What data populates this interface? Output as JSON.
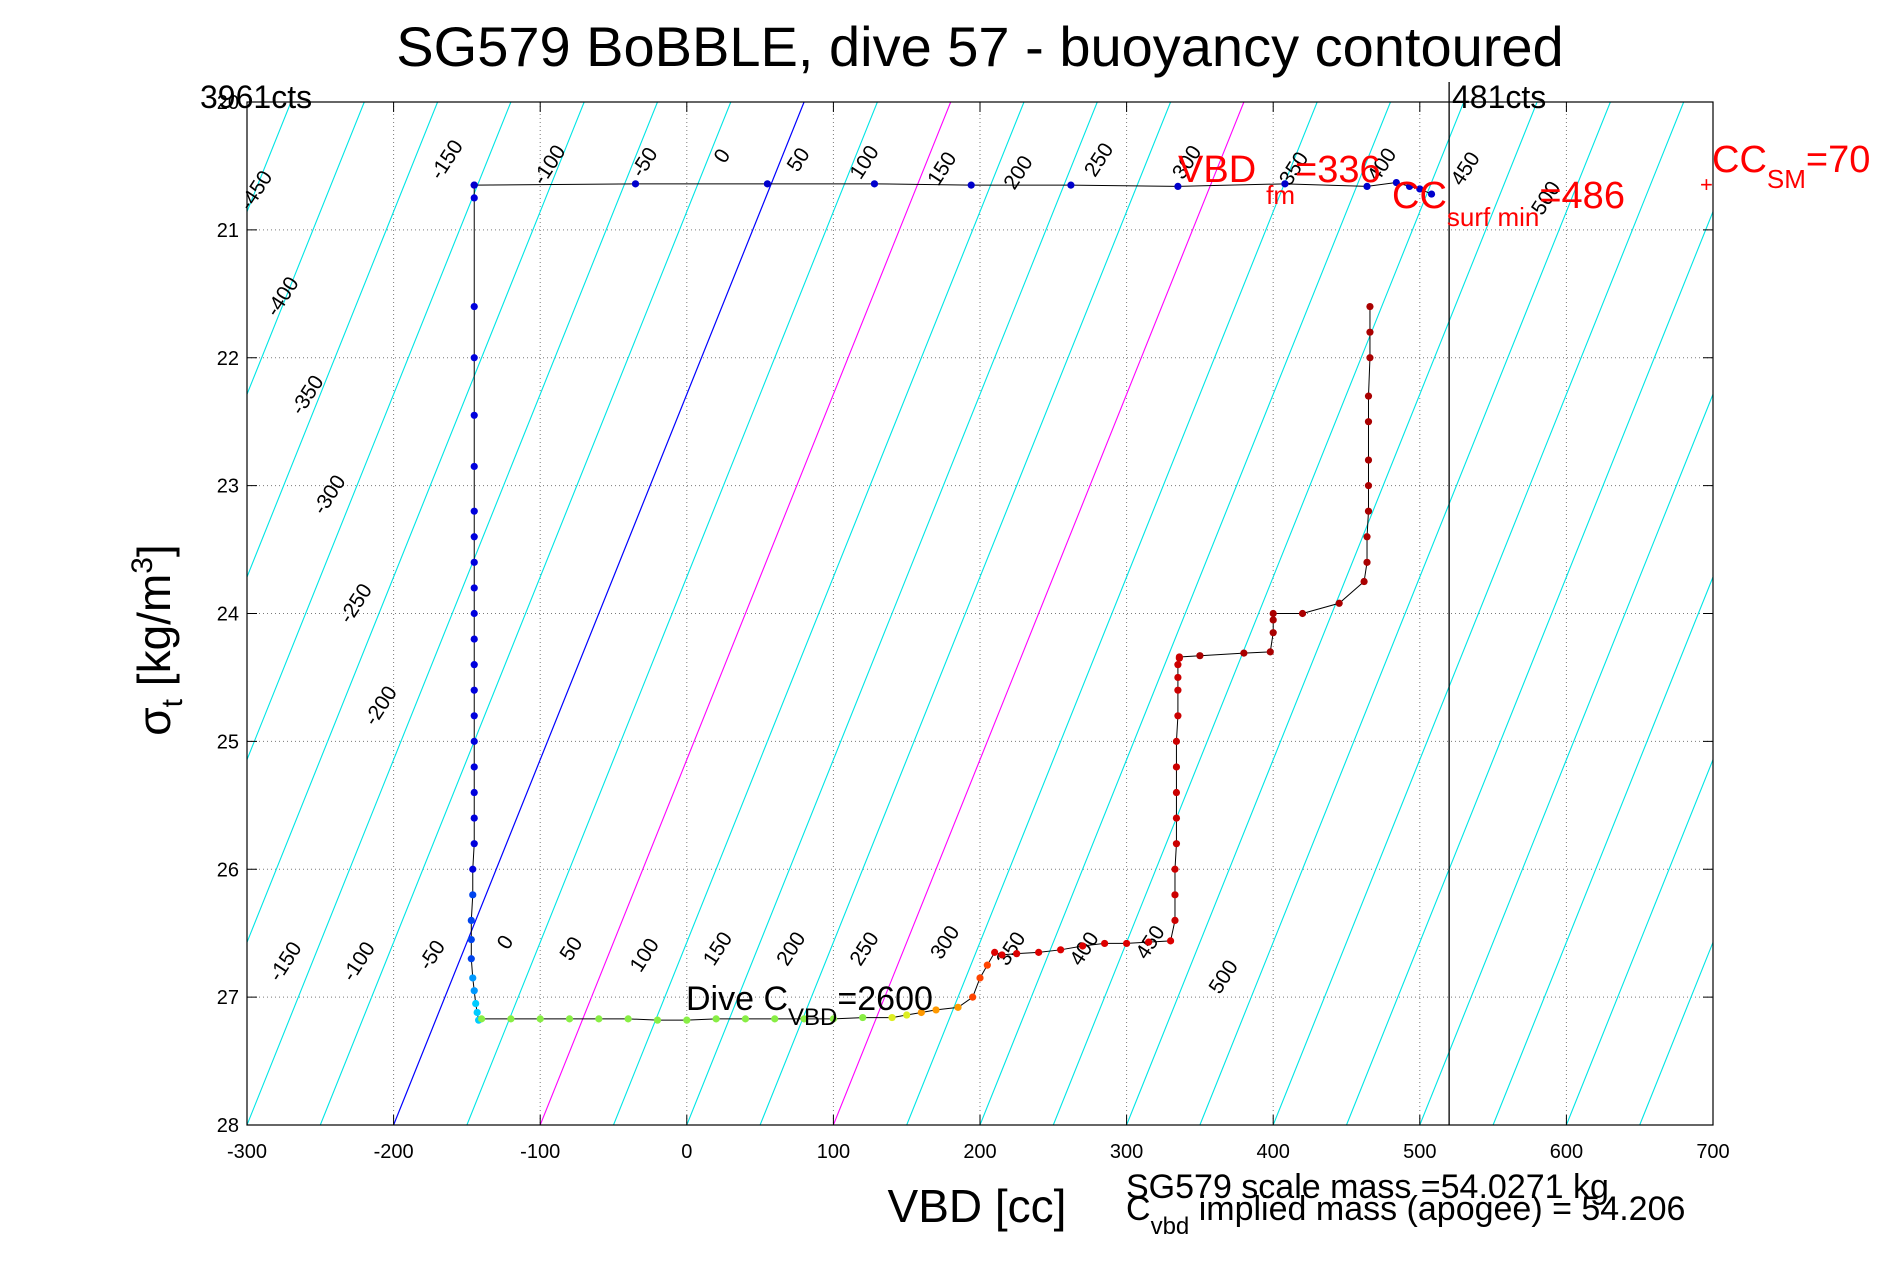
{
  "chart_data": {
    "type": "scatter",
    "title": "SG579 BoBBLE, dive 57 - buoyancy contoured",
    "xlabel": "VBD [cc]",
    "ylabel": "σt [kg/m3]",
    "ylabel_main": "σ",
    "ylabel_sub": "t",
    "ylabel_rest": " [kg/m",
    "ylabel_sup": "3",
    "ylabel_close": "]",
    "xlim": [
      -300,
      700
    ],
    "ylim": [
      20,
      28
    ],
    "y_reversed": true,
    "grid": true,
    "x_ticks": [
      -300,
      -200,
      -100,
      0,
      100,
      200,
      300,
      400,
      500,
      600,
      700
    ],
    "y_ticks": [
      20,
      21,
      22,
      23,
      24,
      25,
      26,
      27,
      28
    ],
    "x_tick_labels": [
      "-300",
      "-200",
      "-100",
      "0",
      "100",
      "200",
      "300",
      "400",
      "500",
      "600",
      "700"
    ],
    "y_tick_labels": [
      "20",
      "21",
      "22",
      "23",
      "24",
      "25",
      "26",
      "27",
      "28"
    ],
    "contour_values": [
      -450,
      -400,
      -350,
      -300,
      -250,
      -200,
      -150,
      -100,
      -50,
      0,
      50,
      100,
      150,
      200,
      250,
      300,
      350,
      400,
      450,
      500
    ],
    "contour_labels_top": [
      "-450",
      "-400",
      "-350",
      "-300",
      "-250",
      "-200",
      "-150",
      "-100",
      "-50",
      "0",
      "50",
      "100",
      "150",
      "200",
      "250",
      "300",
      "350",
      "400",
      "450",
      "500"
    ],
    "contour_labels_bottom": [
      "-150",
      "-100",
      "-50",
      "0",
      "50",
      "100",
      "150",
      "200",
      "250",
      "300",
      "350",
      "400",
      "450",
      "500"
    ],
    "contour_colors": {
      "default": "#00e5e5",
      "zero": "#0000ff",
      "magenta": "#ff00ff"
    },
    "dive_series": {
      "name": "dive",
      "x": [
        -145,
        -145,
        -145,
        -145,
        -145,
        -145,
        -145,
        -145,
        -145,
        -145,
        -145,
        -145,
        -145,
        -145,
        -145,
        -145,
        -145,
        -145,
        -145,
        -145,
        -146,
        -146,
        -147,
        -147,
        -147,
        -146,
        -145,
        -144,
        -143,
        -142
      ],
      "y": [
        20.65,
        20.75,
        21.6,
        22.0,
        22.45,
        22.85,
        23.2,
        23.4,
        23.6,
        23.8,
        24.0,
        24.2,
        24.4,
        24.6,
        24.8,
        25.0,
        25.2,
        25.4,
        25.6,
        25.8,
        26.0,
        26.2,
        26.4,
        26.55,
        26.7,
        26.85,
        26.95,
        27.05,
        27.12,
        27.18
      ]
    },
    "climb_series": {
      "name": "climb",
      "x": [
        -140,
        -120,
        -100,
        -80,
        -60,
        -40,
        -20,
        0,
        20,
        40,
        60,
        80,
        100,
        120,
        140,
        150,
        160,
        170,
        185,
        195,
        200,
        205,
        210,
        215,
        225,
        240,
        255,
        270,
        285,
        300,
        315,
        330,
        333,
        333,
        333,
        334,
        334,
        334,
        334,
        334,
        335,
        335,
        335,
        335,
        336,
        336,
        350,
        380,
        398,
        400,
        400,
        400,
        420,
        445,
        462,
        464,
        464,
        465,
        465,
        465,
        465,
        465,
        466,
        466,
        466
      ],
      "y": [
        27.17,
        27.17,
        27.17,
        27.17,
        27.17,
        27.17,
        27.18,
        27.18,
        27.17,
        27.17,
        27.17,
        27.17,
        27.17,
        27.16,
        27.16,
        27.14,
        27.12,
        27.1,
        27.08,
        27.0,
        26.85,
        26.75,
        26.65,
        26.67,
        26.66,
        26.65,
        26.63,
        26.6,
        26.58,
        26.58,
        26.57,
        26.56,
        26.4,
        26.2,
        26.0,
        25.8,
        25.6,
        25.4,
        25.2,
        25.0,
        24.8,
        24.6,
        24.5,
        24.4,
        24.35,
        24.34,
        24.33,
        24.31,
        24.3,
        24.15,
        24.05,
        24.0,
        24.0,
        23.92,
        23.75,
        23.6,
        23.4,
        23.2,
        23.0,
        22.8,
        22.5,
        22.3,
        22.0,
        21.8,
        21.6
      ]
    },
    "surface_series": {
      "name": "surface",
      "x": [
        -145,
        -35,
        55,
        128,
        194,
        262,
        335,
        408,
        464,
        484,
        493,
        500,
        508
      ],
      "y": [
        20.65,
        20.64,
        20.64,
        20.64,
        20.65,
        20.65,
        20.66,
        20.64,
        20.66,
        20.63,
        20.66,
        20.68,
        20.72
      ]
    },
    "apogee_line_x": 520,
    "annotations": {
      "top_left_counts": "3961cts",
      "top_right_counts": "481cts",
      "vbd_fm": "VBD",
      "vbd_fm_sub": "fm",
      "vbd_fm_val": "=336",
      "cc_surf": "CC",
      "cc_surf_sub": "surf min",
      "cc_surf_val": "=486",
      "cc_sm": "CC",
      "cc_sm_sub": "SM",
      "cc_sm_val": "=70",
      "dive_c": "Dive C",
      "dive_c_sub": "VBD",
      "dive_c_val": "=2600",
      "scale_mass": "SG579 scale mass =54.0271 kg",
      "implied_mass_c": "C",
      "implied_mass_sub": "vbd",
      "implied_mass": " implied mass (apogee) = 54.206"
    },
    "colors": {
      "dive_blue": "#0000cc",
      "climb_red": "#aa0000",
      "annotation_red": "#ff0000"
    }
  }
}
